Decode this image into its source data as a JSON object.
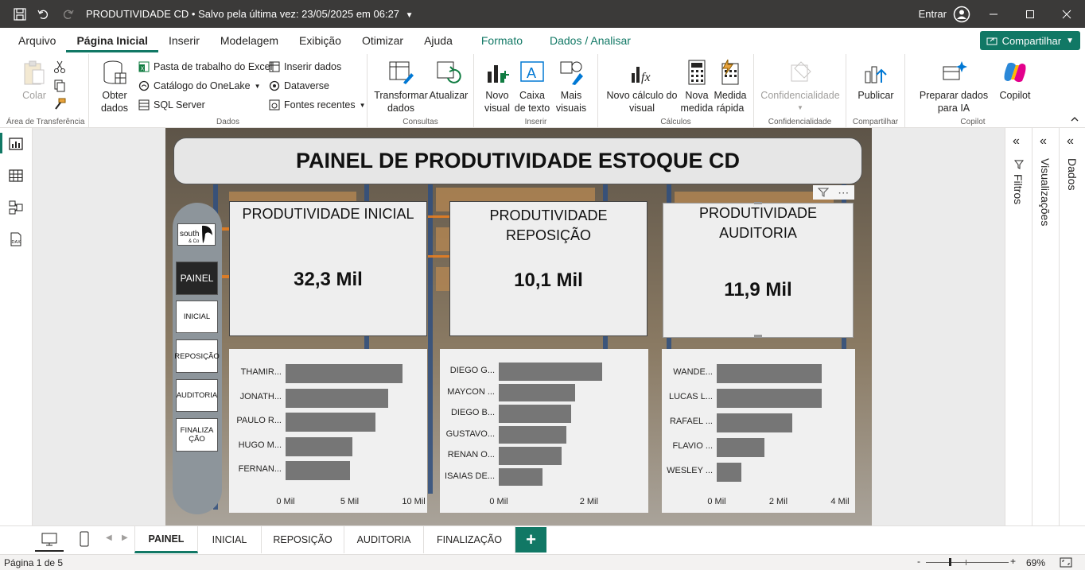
{
  "titlebar": {
    "title": "PRODUTIVIDADE CD",
    "saved": "• Salvo pela última vez: 23/05/2025 em 06:27",
    "signin": "Entrar"
  },
  "menu": {
    "tabs": [
      {
        "label": "Arquivo"
      },
      {
        "label": "Página Inicial"
      },
      {
        "label": "Inserir"
      },
      {
        "label": "Modelagem"
      },
      {
        "label": "Exibição"
      },
      {
        "label": "Otimizar"
      },
      {
        "label": "Ajuda"
      },
      {
        "label": "Formato"
      },
      {
        "label": "Dados / Analisar"
      }
    ],
    "share": "Compartilhar"
  },
  "ribbon": {
    "clipboard": {
      "paste": "Colar",
      "label": "Área de Transferência"
    },
    "data": {
      "get_data": "Obter dados",
      "excel": "Pasta de trabalho do Excel",
      "onelake": "Catálogo do OneLake",
      "sql": "SQL Server",
      "enter_data": "Inserir dados",
      "dataverse": "Dataverse",
      "recent": "Fontes recentes",
      "label": "Dados"
    },
    "queries": {
      "transform": "Transformar dados",
      "refresh": "Atualizar",
      "label": "Consultas"
    },
    "insert": {
      "new_visual": "Novo visual",
      "text_box": "Caixa de texto",
      "more_visuals": "Mais visuais",
      "label": "Inserir"
    },
    "calc": {
      "new_calc": "Novo cálculo do visual",
      "new_measure": "Nova medida",
      "quick_measure": "Medida rápida",
      "label": "Cálculos"
    },
    "sensitivity": {
      "btn": "Confidencialidade",
      "label": "Confidencialidade"
    },
    "share": {
      "publish": "Publicar",
      "label": "Compartilhar"
    },
    "copilot": {
      "btn": "Preparar dados para IA",
      "copilot": "Copilot",
      "label": "Copilot"
    }
  },
  "panes": {
    "filters": "Filtros",
    "visualizations": "Visualizações",
    "data": "Dados"
  },
  "report": {
    "banner": "PAINEL DE PRODUTIVIDADE ESTOQUE CD",
    "logo": "south & Co",
    "nav": [
      {
        "label": "PAINEL"
      },
      {
        "label": "INICIAL"
      },
      {
        "label": "REPOSIÇÃO"
      },
      {
        "label": "AUDITORIA"
      },
      {
        "label": "FINALIZAÇÃO"
      }
    ],
    "kpis": [
      {
        "title": "PRODUTIVIDADE INICIAL",
        "value": "32,3 Mil"
      },
      {
        "title": "PRODUTIVIDADE REPOSIÇÃO",
        "value": "10,1 Mil"
      },
      {
        "title": "PRODUTIVIDADE AUDITORIA",
        "value": "11,9 Mil"
      }
    ]
  },
  "chart_data": [
    {
      "type": "bar",
      "orientation": "horizontal",
      "categories": [
        "THAMIR...",
        "JONATH...",
        "PAULO R...",
        "HUGO M...",
        "FERNAN..."
      ],
      "values": [
        9.1,
        8.0,
        7.0,
        5.2,
        5.0
      ],
      "xlim": [
        0,
        10
      ],
      "xticks": [
        "0 Mil",
        "5 Mil",
        "10 Mil"
      ]
    },
    {
      "type": "bar",
      "orientation": "horizontal",
      "categories": [
        "DIEGO G...",
        "MAYCON ...",
        "DIEGO B...",
        "GUSTAVO...",
        "RENAN O...",
        "ISAIAS DE..."
      ],
      "values": [
        2.3,
        1.7,
        1.6,
        1.5,
        1.4,
        0.97
      ],
      "xlim": [
        0,
        3.0
      ],
      "xticks": [
        "0 Mil",
        "2 Mil"
      ]
    },
    {
      "type": "bar",
      "orientation": "horizontal",
      "categories": [
        "WANDE...",
        "LUCAS L...",
        "RAFAEL ...",
        "FLAVIO ...",
        "WESLEY ..."
      ],
      "values": [
        3.4,
        3.4,
        2.45,
        1.55,
        0.8
      ],
      "xlim": [
        0,
        4
      ],
      "xticks": [
        "0 Mil",
        "2 Mil",
        "4 Mil"
      ]
    }
  ],
  "pagetabs": [
    {
      "label": "PAINEL"
    },
    {
      "label": "INICIAL"
    },
    {
      "label": "REPOSIÇÃO"
    },
    {
      "label": "AUDITORIA"
    },
    {
      "label": "FINALIZAÇÃO"
    }
  ],
  "status": {
    "page": "Página 1 de 5",
    "zoom": "69%"
  }
}
